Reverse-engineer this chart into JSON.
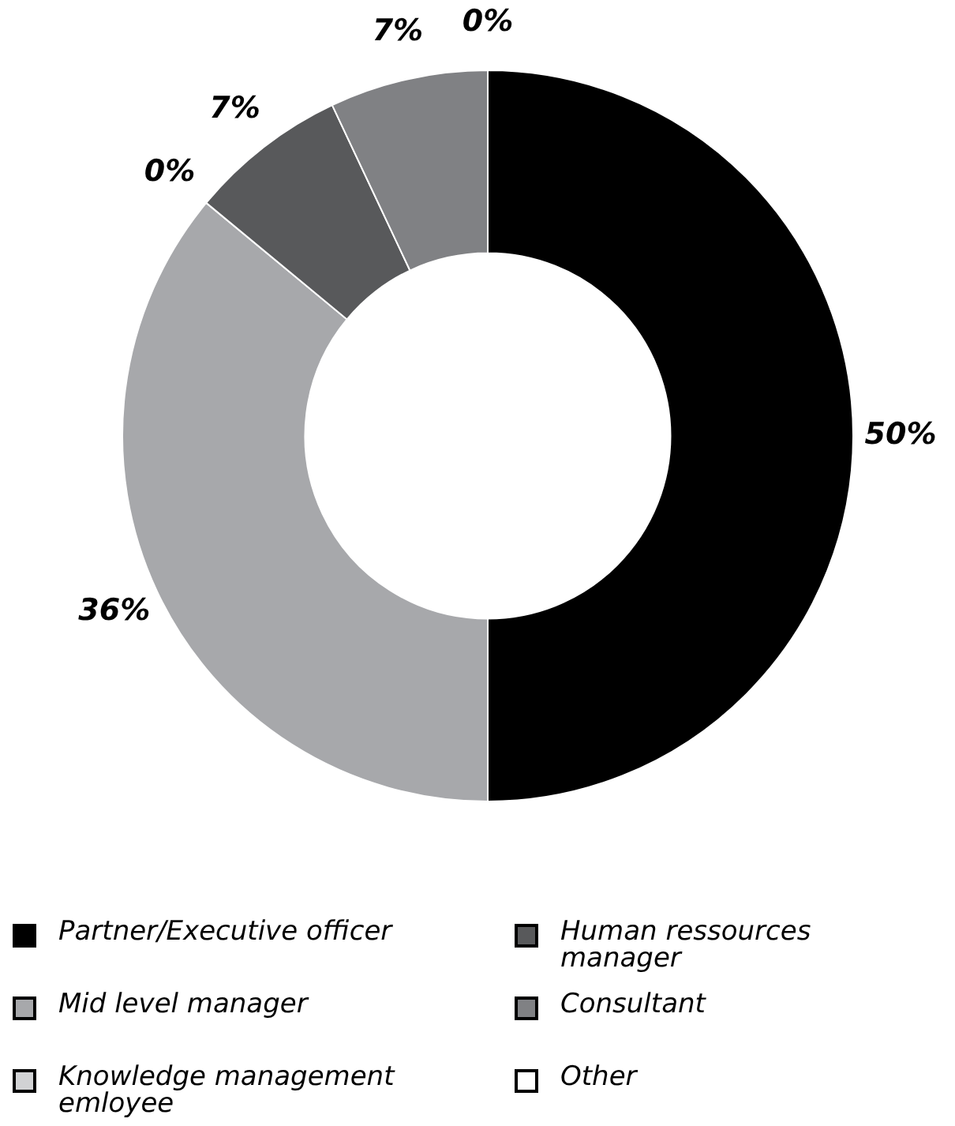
{
  "chart_data": {
    "type": "donut",
    "categories": [
      "Partner/Executive officer",
      "Mid level manager",
      "Knowledge management emloyee",
      "Human ressources manager",
      "Consultant",
      "Other"
    ],
    "values": [
      50,
      36,
      0,
      7,
      7,
      0
    ],
    "colors": [
      "#000000",
      "#a7a8ab",
      "#d1d2d4",
      "#58595b",
      "#808184",
      "#ffffff"
    ],
    "value_labels": [
      "50%",
      "36%",
      "0%",
      "7%",
      "7%",
      "0%"
    ],
    "legend": "bottom"
  }
}
